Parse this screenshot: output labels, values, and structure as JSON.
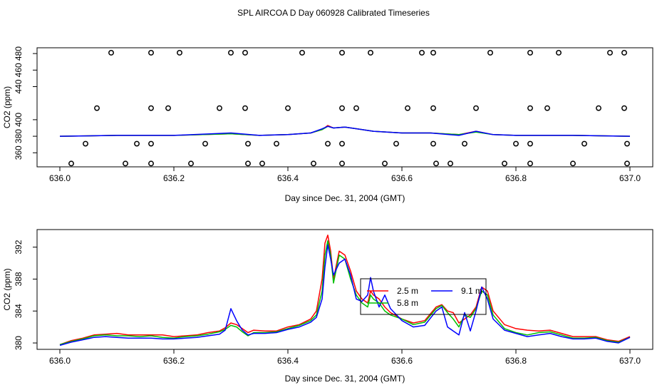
{
  "title": "SPL AIRCOA D  Day 060928  Calibrated Timeseries",
  "colors": {
    "series_2_5": "#ff0000",
    "series_5_8": "#00c000",
    "series_9_1": "#0000ff",
    "axes": "#000000"
  },
  "chart_data": [
    {
      "type": "line",
      "title": "",
      "xlabel": "Day since Dec. 31, 2004 (GMT)",
      "ylabel": "CO2 (ppm)",
      "xlim": [
        636.0,
        637.0
      ],
      "ylim": [
        343,
        487
      ],
      "xticks": [
        636.0,
        636.2,
        636.4,
        636.6,
        636.8,
        637.0
      ],
      "xtick_labels": [
        "636.0",
        "636.2",
        "636.4",
        "636.6",
        "636.8",
        "637.0"
      ],
      "yticks": [
        360,
        380,
        400,
        440,
        460,
        480
      ],
      "ytick_labels": [
        "360",
        "380",
        "400",
        "440",
        "460",
        "480"
      ],
      "grid": false,
      "series": [
        {
          "color": "#ff0000",
          "x": [
            636.0,
            636.1,
            636.2,
            636.3,
            636.35,
            636.4,
            636.44,
            636.46,
            636.47,
            636.48,
            636.5,
            636.55,
            636.6,
            636.65,
            636.7,
            636.73,
            636.76,
            636.8,
            636.9,
            637.0
          ],
          "y": [
            380,
            381,
            381,
            383,
            381,
            382,
            384,
            388,
            393,
            390,
            391,
            386,
            384,
            384,
            382,
            386,
            382,
            381,
            381,
            380
          ]
        },
        {
          "color": "#00c000",
          "x": [
            636.0,
            636.1,
            636.2,
            636.3,
            636.35,
            636.4,
            636.44,
            636.46,
            636.47,
            636.48,
            636.5,
            636.55,
            636.6,
            636.65,
            636.7,
            636.73,
            636.76,
            636.8,
            636.9,
            637.0
          ],
          "y": [
            380,
            381,
            381,
            383,
            381,
            382,
            384,
            388,
            392,
            390,
            391,
            386,
            384,
            384,
            382,
            385,
            382,
            381,
            381,
            380
          ]
        },
        {
          "color": "#0000ff",
          "x": [
            636.0,
            636.1,
            636.2,
            636.3,
            636.35,
            636.4,
            636.44,
            636.46,
            636.47,
            636.48,
            636.5,
            636.55,
            636.6,
            636.65,
            636.7,
            636.73,
            636.76,
            636.8,
            636.9,
            637.0
          ],
          "y": [
            380,
            381,
            381,
            384,
            381,
            382,
            384,
            389,
            392,
            390,
            391,
            386,
            384,
            384,
            381,
            386,
            382,
            381,
            381,
            380
          ]
        }
      ],
      "markers": {
        "symbol": "circle-open",
        "points": [
          [
            636.02,
            347
          ],
          [
            636.045,
            371
          ],
          [
            636.065,
            414
          ],
          [
            636.09,
            481
          ],
          [
            636.115,
            347
          ],
          [
            636.135,
            371
          ],
          [
            636.16,
            347
          ],
          [
            636.16,
            371
          ],
          [
            636.16,
            414
          ],
          [
            636.16,
            481
          ],
          [
            636.19,
            414
          ],
          [
            636.21,
            481
          ],
          [
            636.23,
            347
          ],
          [
            636.255,
            371
          ],
          [
            636.28,
            414
          ],
          [
            636.3,
            481
          ],
          [
            636.325,
            414
          ],
          [
            636.325,
            481
          ],
          [
            636.33,
            347
          ],
          [
            636.33,
            371
          ],
          [
            636.355,
            347
          ],
          [
            636.38,
            371
          ],
          [
            636.4,
            414
          ],
          [
            636.425,
            481
          ],
          [
            636.445,
            347
          ],
          [
            636.47,
            371
          ],
          [
            636.495,
            347
          ],
          [
            636.495,
            371
          ],
          [
            636.495,
            414
          ],
          [
            636.495,
            481
          ],
          [
            636.52,
            414
          ],
          [
            636.545,
            481
          ],
          [
            636.57,
            347
          ],
          [
            636.59,
            371
          ],
          [
            636.61,
            414
          ],
          [
            636.635,
            481
          ],
          [
            636.655,
            371
          ],
          [
            636.655,
            414
          ],
          [
            636.655,
            481
          ],
          [
            636.66,
            347
          ],
          [
            636.685,
            347
          ],
          [
            636.71,
            371
          ],
          [
            636.73,
            414
          ],
          [
            636.755,
            481
          ],
          [
            636.78,
            347
          ],
          [
            636.8,
            371
          ],
          [
            636.825,
            347
          ],
          [
            636.825,
            371
          ],
          [
            636.825,
            414
          ],
          [
            636.825,
            481
          ],
          [
            636.855,
            414
          ],
          [
            636.875,
            481
          ],
          [
            636.9,
            347
          ],
          [
            636.92,
            371
          ],
          [
            636.945,
            414
          ],
          [
            636.965,
            481
          ],
          [
            636.99,
            414
          ],
          [
            636.99,
            481
          ],
          [
            636.995,
            347
          ],
          [
            636.995,
            371
          ]
        ]
      }
    },
    {
      "type": "line",
      "title": "",
      "xlabel": "Day since Dec. 31, 2004 (GMT)",
      "ylabel": "CO2 (ppm)",
      "xlim": [
        636.0,
        637.0
      ],
      "ylim": [
        379.2,
        394.2
      ],
      "xticks": [
        636.0,
        636.2,
        636.4,
        636.6,
        636.8,
        637.0
      ],
      "xtick_labels": [
        "636.0",
        "636.2",
        "636.4",
        "636.6",
        "636.8",
        "637.0"
      ],
      "yticks": [
        380,
        384,
        388,
        392
      ],
      "ytick_labels": [
        "380",
        "384",
        "388",
        "392"
      ],
      "grid": false,
      "legend": {
        "placement": "center",
        "entries": [
          {
            "label": "2.5 m",
            "color": "#ff0000"
          },
          {
            "label": "5.8 m",
            "color": "#00c000"
          },
          {
            "label": "9.1 m",
            "color": "#0000ff"
          }
        ]
      },
      "series": [
        {
          "name": "2.5 m",
          "color": "#ff0000",
          "x": [
            636.0,
            636.02,
            636.04,
            636.06,
            636.08,
            636.1,
            636.12,
            636.14,
            636.16,
            636.18,
            636.2,
            636.22,
            636.24,
            636.26,
            636.28,
            636.29,
            636.3,
            636.31,
            636.32,
            636.33,
            636.34,
            636.36,
            636.38,
            636.4,
            636.42,
            636.44,
            636.45,
            636.46,
            636.465,
            636.47,
            636.475,
            636.48,
            636.49,
            636.5,
            636.51,
            636.52,
            636.53,
            636.54,
            636.545,
            636.55,
            636.56,
            636.57,
            636.58,
            636.6,
            636.62,
            636.64,
            636.66,
            636.67,
            636.68,
            636.69,
            636.7,
            636.71,
            636.72,
            636.73,
            636.74,
            636.75,
            636.76,
            636.78,
            636.8,
            636.82,
            636.84,
            636.86,
            636.88,
            636.9,
            636.92,
            636.94,
            636.96,
            636.98,
            637.0
          ],
          "y": [
            379.8,
            380.3,
            380.6,
            381.0,
            381.1,
            381.2,
            381.0,
            381.0,
            381.0,
            381.0,
            380.8,
            380.9,
            381.0,
            381.3,
            381.5,
            381.9,
            382.5,
            382.3,
            381.8,
            381.3,
            381.6,
            381.5,
            381.5,
            382.0,
            382.3,
            383.0,
            384.0,
            388.0,
            392.5,
            393.5,
            391.5,
            388.0,
            391.5,
            391.0,
            389.0,
            386.5,
            385.5,
            385.0,
            386.5,
            386.0,
            385.5,
            384.5,
            383.8,
            383.0,
            382.5,
            382.8,
            384.5,
            384.8,
            384.0,
            383.8,
            382.5,
            383.0,
            383.5,
            384.5,
            387.0,
            386.5,
            384.0,
            382.3,
            381.8,
            381.6,
            381.5,
            381.6,
            381.2,
            380.8,
            380.8,
            380.8,
            380.4,
            380.2,
            380.8
          ]
        },
        {
          "name": "5.8 m",
          "color": "#00c000",
          "x": [
            636.0,
            636.02,
            636.04,
            636.06,
            636.08,
            636.1,
            636.12,
            636.14,
            636.16,
            636.18,
            636.2,
            636.22,
            636.24,
            636.26,
            636.28,
            636.29,
            636.3,
            636.31,
            636.32,
            636.33,
            636.34,
            636.36,
            636.38,
            636.4,
            636.42,
            636.44,
            636.45,
            636.46,
            636.465,
            636.47,
            636.475,
            636.48,
            636.49,
            636.5,
            636.51,
            636.52,
            636.53,
            636.54,
            636.545,
            636.55,
            636.56,
            636.57,
            636.58,
            636.6,
            636.62,
            636.64,
            636.66,
            636.67,
            636.68,
            636.69,
            636.7,
            636.71,
            636.72,
            636.73,
            636.74,
            636.75,
            636.76,
            636.78,
            636.8,
            636.82,
            636.84,
            636.86,
            636.88,
            636.9,
            636.92,
            636.94,
            636.96,
            636.98,
            637.0
          ],
          "y": [
            379.8,
            380.2,
            380.5,
            380.9,
            381.0,
            380.9,
            380.9,
            380.8,
            380.9,
            380.7,
            380.6,
            380.8,
            380.9,
            381.1,
            381.4,
            381.7,
            382.2,
            382.0,
            381.4,
            380.9,
            381.3,
            381.3,
            381.4,
            381.8,
            382.2,
            382.8,
            383.5,
            386.5,
            391.0,
            392.8,
            391.0,
            387.5,
            391.0,
            390.5,
            388.0,
            386.0,
            385.0,
            384.5,
            386.0,
            385.5,
            385.0,
            384.0,
            383.5,
            383.0,
            382.3,
            382.6,
            384.3,
            384.7,
            383.8,
            383.0,
            382.0,
            383.5,
            383.2,
            384.3,
            386.5,
            386.0,
            383.5,
            381.8,
            381.3,
            381.0,
            381.3,
            381.4,
            381.0,
            380.6,
            380.6,
            380.7,
            380.3,
            380.1,
            380.7
          ]
        },
        {
          "name": "9.1 m",
          "color": "#0000ff",
          "x": [
            636.0,
            636.02,
            636.04,
            636.06,
            636.08,
            636.1,
            636.12,
            636.14,
            636.16,
            636.18,
            636.2,
            636.22,
            636.24,
            636.26,
            636.28,
            636.29,
            636.3,
            636.31,
            636.32,
            636.33,
            636.34,
            636.36,
            636.38,
            636.4,
            636.42,
            636.44,
            636.45,
            636.46,
            636.465,
            636.47,
            636.475,
            636.48,
            636.49,
            636.5,
            636.51,
            636.52,
            636.53,
            636.54,
            636.545,
            636.55,
            636.56,
            636.57,
            636.58,
            636.6,
            636.62,
            636.64,
            636.66,
            636.67,
            636.68,
            636.69,
            636.7,
            636.71,
            636.72,
            636.73,
            636.74,
            636.75,
            636.76,
            636.78,
            636.8,
            636.82,
            636.84,
            636.86,
            636.88,
            636.9,
            636.92,
            636.94,
            636.96,
            636.98,
            637.0
          ],
          "y": [
            379.7,
            380.1,
            380.4,
            380.7,
            380.8,
            380.7,
            380.6,
            380.6,
            380.6,
            380.5,
            380.5,
            380.6,
            380.7,
            380.9,
            381.1,
            381.6,
            384.3,
            382.8,
            381.6,
            381.0,
            381.2,
            381.2,
            381.3,
            381.7,
            382.0,
            382.6,
            383.2,
            385.5,
            389.5,
            392.3,
            390.5,
            388.5,
            390.0,
            390.5,
            388.5,
            385.5,
            385.2,
            386.0,
            388.2,
            386.5,
            384.5,
            386.0,
            384.3,
            382.8,
            382.0,
            382.2,
            384.0,
            384.5,
            382.0,
            381.5,
            381.0,
            383.8,
            381.5,
            384.0,
            387.0,
            385.5,
            383.0,
            381.6,
            381.2,
            380.8,
            381.0,
            381.2,
            380.8,
            380.5,
            380.5,
            380.6,
            380.2,
            380.0,
            380.7
          ]
        }
      ]
    }
  ]
}
